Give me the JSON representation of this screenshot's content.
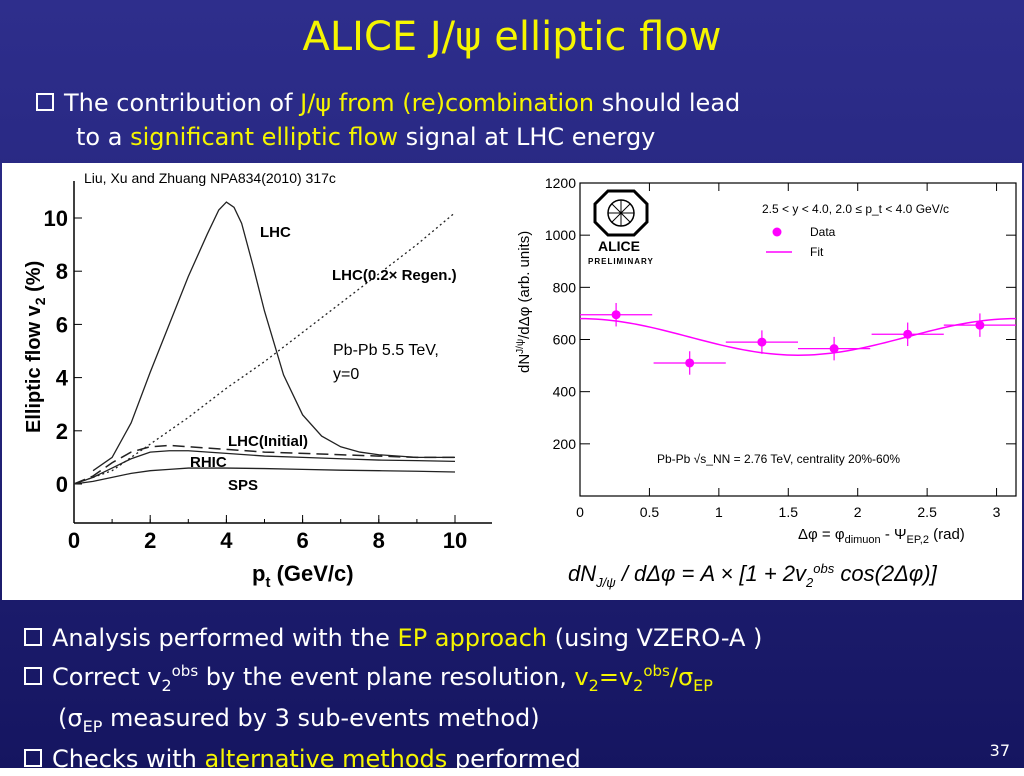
{
  "slide": {
    "title": "ALICE J/ψ elliptic flow",
    "top_bullet": {
      "p1": "The contribution of ",
      "hl1": "J/ψ from (re)combination",
      "p2": " should lead",
      "p3": "to a ",
      "hl2": "significant elliptic flow",
      "p4": " signal at LHC energy"
    },
    "bottom_bullets": {
      "b1_a": "Analysis performed with the ",
      "b1_hl": "EP approach",
      "b1_b": " (using VZERO-A )",
      "b2_a": "Correct v",
      "b2_sub": "2",
      "b2_sup": "obs",
      "b2_b": " by the event plane resolution, ",
      "b2_hl_a": "v",
      "b2_hl_sub": "2",
      "b2_hl_b": "=v",
      "b2_hl_sub2": "2",
      "b2_hl_sup": "obs",
      "b2_hl_c": "/σ",
      "b2_hl_sub3": "EP",
      "b3_a": "(σ",
      "b3_sub": "EP",
      "b3_b": " measured by 3 sub-events method)",
      "b4_a": "Checks with ",
      "b4_hl": "alternative methods",
      "b4_b": " performed"
    },
    "page_number": "37",
    "colors": {
      "title": "#f5f500",
      "highlight": "#f5f500",
      "background": "#23237a",
      "data": "#ff00ff"
    }
  },
  "chart_data": [
    {
      "type": "line",
      "citation": "Liu, Xu and Zhuang NPA834(2010) 317c",
      "xlabel": "p_t (GeV/c)",
      "ylabel": "Elliptic flow v_2 (%)",
      "xlim": [
        0,
        10
      ],
      "ylim": [
        0,
        11
      ],
      "xticks": [
        "0",
        "2",
        "4",
        "6",
        "8",
        "10"
      ],
      "yticks": [
        "0",
        "2",
        "4",
        "6",
        "8",
        "10"
      ],
      "annotation_lines": [
        "Pb-Pb 5.5 TeV,",
        "y=0"
      ],
      "series": [
        {
          "name": "LHC",
          "style": "solid",
          "x": [
            0.5,
            1,
            1.5,
            2,
            2.5,
            3,
            3.5,
            3.8,
            4,
            4.2,
            4.4,
            4.7,
            5,
            5.5,
            6,
            6.5,
            7,
            7.5,
            8,
            9,
            10
          ],
          "y": [
            0.5,
            1.0,
            2.3,
            4.2,
            6.0,
            7.8,
            9.4,
            10.3,
            10.6,
            10.4,
            9.8,
            8.2,
            6.5,
            4.1,
            2.6,
            1.8,
            1.4,
            1.2,
            1.1,
            1.0,
            1.0
          ]
        },
        {
          "name": "LHC(0.2× Regen.)",
          "style": "dotted",
          "x": [
            0,
            1,
            2,
            3,
            4,
            5,
            6,
            7,
            8,
            9,
            10
          ],
          "y": [
            0,
            0.5,
            1.5,
            2.5,
            3.6,
            4.6,
            5.7,
            6.8,
            7.9,
            9.0,
            10.2
          ]
        },
        {
          "name": "LHC(Initial)",
          "style": "dashed",
          "x": [
            0,
            0.5,
            1,
            1.5,
            2,
            2.5,
            3,
            4,
            5,
            6,
            7,
            8,
            9,
            10
          ],
          "y": [
            0,
            0.3,
            0.8,
            1.2,
            1.4,
            1.45,
            1.4,
            1.3,
            1.2,
            1.15,
            1.1,
            1.05,
            1.0,
            1.0
          ]
        },
        {
          "name": "RHIC",
          "style": "solid",
          "x": [
            0,
            0.5,
            1,
            1.5,
            2,
            2.5,
            3,
            4,
            5,
            6,
            7,
            8,
            9,
            10
          ],
          "y": [
            0,
            0.25,
            0.6,
            0.95,
            1.2,
            1.25,
            1.25,
            1.15,
            1.05,
            1.0,
            0.95,
            0.9,
            0.88,
            0.85
          ]
        },
        {
          "name": "SPS",
          "style": "solid",
          "x": [
            0,
            0.5,
            1,
            1.5,
            2,
            2.5,
            3,
            4,
            5,
            6,
            7,
            8,
            9,
            10
          ],
          "y": [
            0,
            0.1,
            0.25,
            0.4,
            0.5,
            0.55,
            0.6,
            0.6,
            0.58,
            0.55,
            0.52,
            0.5,
            0.48,
            0.45
          ]
        }
      ],
      "series_labels": [
        "LHC",
        "LHC(0.2× Regen.)",
        "LHC(Initial)",
        "RHIC",
        "SPS"
      ]
    },
    {
      "type": "scatter",
      "logo_text": [
        "ALICE",
        "PRELIMINARY"
      ],
      "xlabel": "Δφ = φ_dimuon - Ψ_EP,2 (rad)",
      "ylabel": "dN^J/ψ/dΔφ (arb. units)",
      "xlim": [
        0,
        3.14
      ],
      "ylim": [
        0,
        1200
      ],
      "xticks": [
        "0",
        "0.5",
        "1",
        "1.5",
        "2",
        "2.5",
        "3"
      ],
      "yticks": [
        "200",
        "400",
        "600",
        "800",
        "1000",
        "1200"
      ],
      "kinematic_label": "2.5 < y < 4.0, 2.0 ≤ p_t < 4.0 GeV/c",
      "collision_label": "Pb-Pb √s_NN = 2.76 TeV, centrality 20%-60%",
      "legend": {
        "placement": "top-right",
        "entries": [
          "Data",
          "Fit"
        ]
      },
      "data": {
        "x": [
          0.26,
          0.79,
          1.31,
          1.83,
          2.36,
          2.88
        ],
        "y": [
          695,
          510,
          590,
          565,
          620,
          655
        ],
        "yerr": [
          45,
          45,
          45,
          45,
          45,
          45
        ],
        "xerr": [
          0.26,
          0.26,
          0.26,
          0.26,
          0.26,
          0.26
        ]
      },
      "fit": {
        "A": 610,
        "v2_obs": 0.0575,
        "xrange": [
          0,
          3.14
        ]
      },
      "formula": "dN_J/ψ / dΔφ = A × [1 + 2v_2^obs cos(2Δφ)]"
    }
  ]
}
